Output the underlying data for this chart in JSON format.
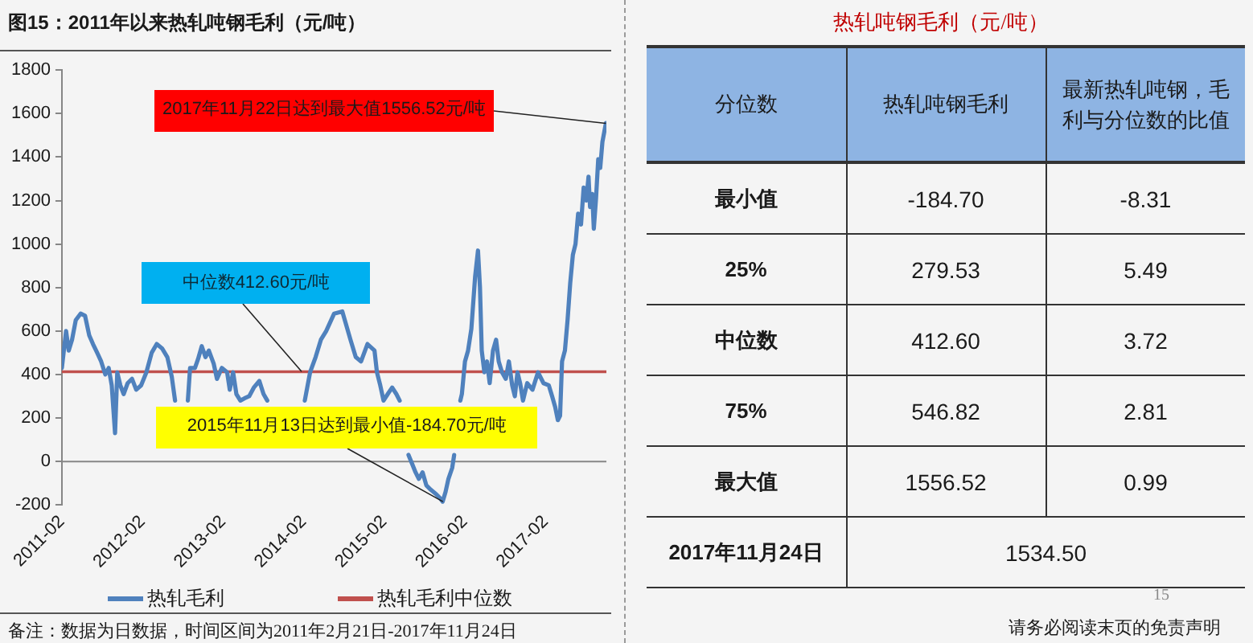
{
  "chart_data": [
    {
      "type": "line",
      "title": "图15：2011年以来热轧吨钢毛利（元/吨）",
      "series": [
        {
          "name": "热轧毛利",
          "color": "#4f81bd",
          "x": [
            "2011-02-21",
            "2011-03-12",
            "2011-03-24",
            "2011-04-08",
            "2011-04-25",
            "2011-05-17",
            "2011-06-06",
            "2011-06-25",
            "2011-07-12",
            "2011-07-31",
            "2011-08-18",
            "2011-09-06",
            "2011-09-21",
            "2011-10-05",
            "2011-10-20",
            "2011-10-30",
            "2011-11-13",
            "2011-11-28",
            "2011-12-16",
            "2012-01-05",
            "2012-01-24",
            "2012-02-15",
            "2012-03-10",
            "2012-04-03",
            "2012-04-26",
            "2012-05-20",
            "2012-06-13",
            "2012-07-03",
            "2012-07-18",
            "2012-08-16",
            "2012-09-14",
            "2012-09-24",
            "2012-10-16",
            "2012-10-30",
            "2012-11-16",
            "2012-12-03",
            "2012-12-18",
            "2013-01-09",
            "2013-01-24",
            "2013-02-15",
            "2013-03-11",
            "2013-03-23",
            "2013-04-07",
            "2013-04-22",
            "2013-05-10",
            "2013-05-28",
            "2013-06-19",
            "2013-07-10",
            "2013-08-04",
            "2013-08-23",
            "2013-09-09",
            "2013-12-02",
            "2014-02-26",
            "2014-03-22",
            "2014-04-16",
            "2014-05-10",
            "2014-06-03",
            "2014-07-09",
            "2014-08-15",
            "2014-09-21",
            "2014-10-15",
            "2014-11-08",
            "2014-12-07",
            "2015-01-08",
            "2015-01-19",
            "2015-02-03",
            "2015-02-18",
            "2015-03-09",
            "2015-03-29",
            "2015-04-17",
            "2015-05-02",
            "2015-05-30",
            "2015-06-11",
            "2015-06-27",
            "2015-07-13",
            "2015-07-28",
            "2015-08-14",
            "2015-08-31",
            "2015-09-20",
            "2015-10-14",
            "2015-11-02",
            "2015-11-13",
            "2015-11-26",
            "2015-12-09",
            "2015-12-26",
            "2016-01-04",
            "2016-01-19",
            "2016-02-01",
            "2016-02-08",
            "2016-02-22",
            "2016-03-07",
            "2016-03-22",
            "2016-04-08",
            "2016-04-21",
            "2016-04-30",
            "2016-05-08",
            "2016-05-20",
            "2016-06-01",
            "2016-06-13",
            "2016-06-28",
            "2016-07-12",
            "2016-07-24",
            "2016-08-08",
            "2016-08-25",
            "2016-09-08",
            "2016-09-23",
            "2016-10-05",
            "2016-10-17",
            "2016-10-29",
            "2016-11-11",
            "2016-11-30",
            "2016-12-24",
            "2017-01-18",
            "2017-02-12",
            "2017-03-08",
            "2017-03-23",
            "2017-04-06",
            "2017-04-18",
            "2017-04-28",
            "2017-05-07",
            "2017-05-20",
            "2017-06-01",
            "2017-06-13",
            "2017-06-25",
            "2017-07-07",
            "2017-07-19",
            "2017-08-01",
            "2017-08-13",
            "2017-08-25",
            "2017-09-04",
            "2017-09-11",
            "2017-09-21",
            "2017-09-28",
            "2017-10-08",
            "2017-10-18",
            "2017-10-27",
            "2017-11-06",
            "2017-11-22",
            "2017-11-24"
          ],
          "values": [
            430,
            600,
            510,
            560,
            650,
            680,
            670,
            580,
            540,
            500,
            460,
            400,
            430,
            350,
            130,
            410,
            350,
            310,
            360,
            380,
            330,
            350,
            410,
            500,
            540,
            520,
            480,
            390,
            280,
            null,
            280,
            430,
            430,
            470,
            530,
            480,
            510,
            450,
            380,
            430,
            410,
            330,
            410,
            310,
            280,
            290,
            300,
            340,
            370,
            310,
            280,
            null,
            280,
            410,
            480,
            560,
            600,
            680,
            690,
            560,
            480,
            460,
            540,
            510,
            410,
            350,
            280,
            310,
            340,
            310,
            280,
            null,
            30,
            -10,
            -50,
            -80,
            -50,
            -110,
            -130,
            -150,
            -170,
            -184.7,
            -140,
            -80,
            -30,
            30,
            null,
            280,
            310,
            460,
            510,
            610,
            850,
            970,
            800,
            510,
            410,
            460,
            360,
            510,
            560,
            460,
            410,
            380,
            460,
            350,
            300,
            410,
            360,
            280,
            360,
            330,
            410,
            360,
            350,
            300,
            250,
            190,
            210,
            460,
            510,
            650,
            820,
            950,
            1000,
            1140,
            1090,
            1260,
            1200,
            1310,
            1170,
            1230,
            1070,
            1210,
            1390,
            1350,
            1470,
            1556.52,
            1534.5
          ]
        },
        {
          "name": "热轧毛利中位数",
          "color": "#c0504d",
          "x": [
            "2011-02-21",
            "2017-11-24"
          ],
          "values": [
            412.6,
            412.6
          ]
        }
      ],
      "xlim": [
        "2011-02-21",
        "2017-11-24"
      ],
      "xticks": [
        {
          "value": "2011-02-21",
          "label": "2011-02"
        },
        {
          "value": "2012-02-21",
          "label": "2012-02"
        },
        {
          "value": "2013-02-21",
          "label": "2013-02"
        },
        {
          "value": "2014-02-21",
          "label": "2014-02"
        },
        {
          "value": "2015-02-21",
          "label": "2015-02"
        },
        {
          "value": "2016-02-21",
          "label": "2016-02"
        },
        {
          "value": "2017-02-21",
          "label": "2017-02"
        }
      ],
      "ylim": [
        -200,
        1800
      ],
      "yticks": [
        -200,
        0,
        200,
        400,
        600,
        800,
        1000,
        1200,
        1400,
        1600,
        1800
      ],
      "ref_lines": [
        {
          "axis": "y",
          "value": 0,
          "color": "#868686"
        }
      ],
      "grid": false,
      "legend": "bottom",
      "annotations": [
        {
          "text": "2017年11月22日达到最大值1556.52元/吨",
          "x": "2017-11-22",
          "y": 1556.52
        },
        {
          "text": "中位数412.60元/吨",
          "x": "2014-02-10",
          "y": 412.6
        },
        {
          "text": "2015年11月13日达到最小值-184.70元/吨",
          "x": "2015-11-13",
          "y": -184.7
        },
        "备注：数据为日数据，时间区间为2011年2月21日-2017年11月24日"
      ]
    },
    {
      "type": "other",
      "title": "热轧吨钢毛利（元/吨）",
      "ylabel": "分位数",
      "categories": [
        "最小值",
        "25%",
        "中位数",
        "75%",
        "最大值",
        "2017年11月24日"
      ],
      "series": [
        {
          "name": "热轧吨钢毛利",
          "values": [
            -184.7,
            279.53,
            412.6,
            546.82,
            1556.52,
            1534.5
          ],
          "value_labels": [
            "-184.70",
            "279.53",
            "412.60",
            "546.82",
            "1556.52",
            "1534.50"
          ]
        },
        {
          "name": "最新热轧吨钢，毛利与分位数的比值",
          "values": [
            -8.31,
            5.49,
            3.72,
            2.81,
            0.99,
            null
          ],
          "value_labels": [
            "-8.31",
            "5.49",
            "3.72",
            "2.81",
            "0.99",
            null
          ]
        }
      ],
      "annotations": [
        "15",
        "请务必阅读末页的免责声明"
      ]
    }
  ]
}
